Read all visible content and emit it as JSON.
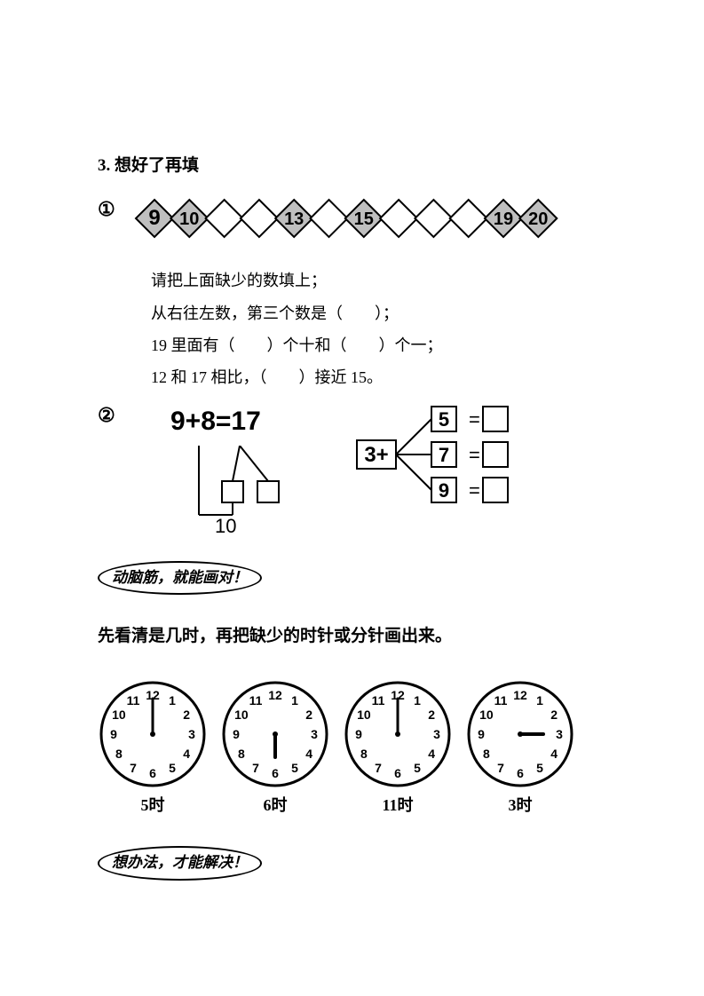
{
  "section3": {
    "title": "3. 想好了再填",
    "q1": {
      "marker": "①",
      "diamonds": [
        "9",
        "10",
        "",
        "",
        "13",
        "",
        "15",
        "",
        "",
        "",
        "19",
        "20"
      ],
      "shade_indices": [
        0,
        1,
        4,
        6,
        10,
        11
      ],
      "lines": [
        "请把上面缺少的数填上；",
        "从右往左数，第三个数是（　　）；",
        "19 里面有（　　）个十和（　　）个一；",
        "12 和 17 相比，（　　）接近 15。"
      ]
    },
    "q2": {
      "marker": "②",
      "equation": "9+8=17",
      "below_number": "10",
      "tree_root": "3+",
      "tree_branches": [
        "5",
        "7",
        "9"
      ]
    },
    "bubble1": "动脑筋，就能画对！",
    "clock_instruction": "先看清是几时，再把缺少的时针或分针画出来。",
    "clocks": [
      {
        "label": "5时",
        "draw_minute": true,
        "draw_hour": false,
        "minute_to": 12,
        "hour_to": 5
      },
      {
        "label": "6时",
        "draw_minute": false,
        "draw_hour": true,
        "minute_to": 12,
        "hour_to": 6
      },
      {
        "label": "11时",
        "draw_minute": true,
        "draw_hour": false,
        "minute_to": 12,
        "hour_to": 11
      },
      {
        "label": "3时",
        "draw_minute": false,
        "draw_hour": true,
        "minute_to": 12,
        "hour_to": 3
      }
    ],
    "bubble2": "想办法，才能解决！"
  },
  "style": {
    "diamond_size": 42,
    "diamond_overlap": 0.35,
    "diamond_stroke": "#000",
    "diamond_shade": "#bfbfbf",
    "clock_radius": 58,
    "clock_stroke": "#000"
  }
}
